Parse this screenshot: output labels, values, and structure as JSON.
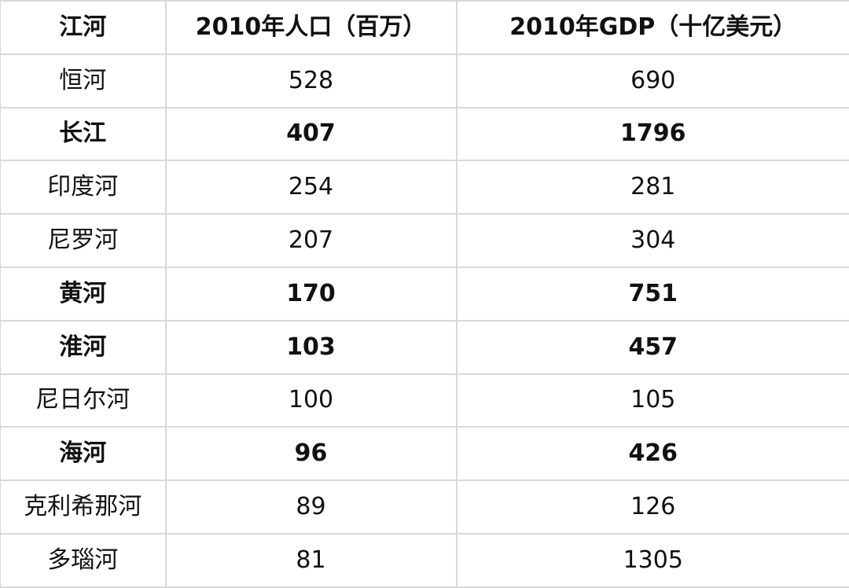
{
  "table": {
    "headers": [
      "江河",
      "2010年人口（百万）",
      "2010年GDP（十亿美元）"
    ],
    "rows": [
      {
        "river": "恒河",
        "population": "528",
        "gdp": "690",
        "bold": false
      },
      {
        "river": "长江",
        "population": "407",
        "gdp": "1796",
        "bold": true
      },
      {
        "river": "印度河",
        "population": "254",
        "gdp": "281",
        "bold": false
      },
      {
        "river": "尼罗河",
        "population": "207",
        "gdp": "304",
        "bold": false
      },
      {
        "river": "黄河",
        "population": "170",
        "gdp": "751",
        "bold": true
      },
      {
        "river": "淮河",
        "population": "103",
        "gdp": "457",
        "bold": true
      },
      {
        "river": "尼日尔河",
        "population": "100",
        "gdp": "105",
        "bold": false
      },
      {
        "river": "海河",
        "population": "96",
        "gdp": "426",
        "bold": true
      },
      {
        "river": "克利希那河",
        "population": "89",
        "gdp": "126",
        "bold": false
      },
      {
        "river": "多瑙河",
        "population": "81",
        "gdp": "1305",
        "bold": false
      }
    ]
  }
}
